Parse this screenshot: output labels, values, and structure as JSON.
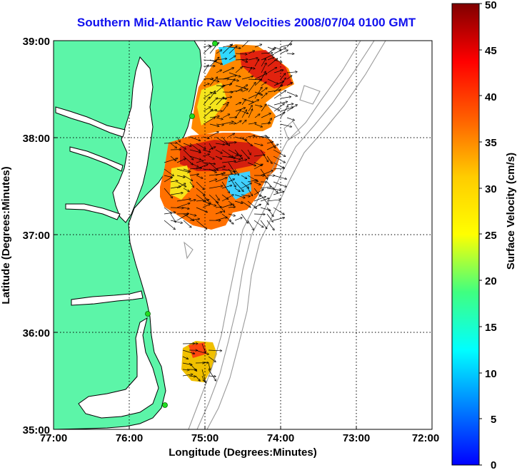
{
  "title": "Southern Mid-Atlantic Raw Velocities 2008/07/04 0100 GMT",
  "chart_data": {
    "type": "map",
    "title": "Southern Mid-Atlantic Raw Velocities 2008/07/04 0100 GMT",
    "xlabel": "Longitude (Degrees:Minutes)",
    "ylabel": "Latitude (Degrees:Minutes)",
    "x_ticks": [
      "77:00",
      "76:00",
      "75:00",
      "74:00",
      "73:00",
      "72:00"
    ],
    "y_ticks": [
      "39:00",
      "38:00",
      "37:00",
      "36:00",
      "35:00"
    ],
    "xlim": [
      -77,
      -72
    ],
    "ylim": [
      35,
      39
    ],
    "grid": true,
    "colorbar": {
      "label": "Surface Velocity (cm/s)",
      "ticks": [
        "50",
        "45",
        "40",
        "35",
        "30",
        "25",
        "20",
        "15",
        "10",
        "5",
        "0"
      ],
      "range": [
        0,
        50
      ],
      "colormap": "jet"
    },
    "colors": {
      "land": "#5cf5a8",
      "coastline": "#000000",
      "bathymetry": "#9a9a9a",
      "station": "#22dd22"
    },
    "stations_lonlat": [
      [
        -74.85,
        38.97
      ],
      [
        -75.15,
        38.2
      ],
      [
        -75.7,
        36.17
      ],
      [
        -75.5,
        35.25
      ]
    ]
  }
}
